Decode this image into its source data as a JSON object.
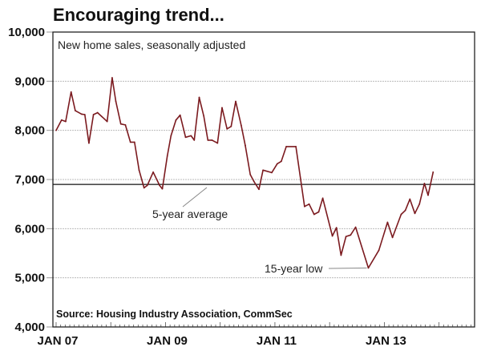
{
  "chart_data": {
    "type": "line",
    "title": "Encouraging trend...",
    "subtitle": "New home sales, seasonally adjusted",
    "source": "Source: Housing Industry Association, CommSec",
    "x_unit": "months since Jan 2007",
    "xlim": [
      -0.7,
      91.8
    ],
    "ylim": [
      4000,
      10000
    ],
    "yticks": [
      4000,
      5000,
      6000,
      7000,
      8000,
      9000,
      10000
    ],
    "ytick_labels": [
      "4,000",
      "5,000",
      "6,000",
      "7,000",
      "8,000",
      "9,000",
      "10,000"
    ],
    "xticks": [
      0,
      24,
      48,
      72
    ],
    "xtick_labels": [
      "JAN 07",
      "JAN 09",
      "JAN 11",
      "JAN 13"
    ],
    "grid": true,
    "colors": {
      "series": "#7b1a1f",
      "average": "#111111",
      "grid": "#bbbbbb"
    },
    "average": {
      "value": 6900,
      "label": "5-year average"
    },
    "low_annotation": {
      "x": 68.5,
      "value": 5200,
      "label": "15-year low"
    },
    "series": [
      {
        "name": "New home sales",
        "x": [
          0,
          1.2,
          2.1,
          3.3,
          4.2,
          5.6,
          6.3,
          7.2,
          8.2,
          9.1,
          11.2,
          12.3,
          13.1,
          14.2,
          15.2,
          16.3,
          17.2,
          18.2,
          19.3,
          20,
          21.3,
          22.7,
          23.3,
          24.4,
          25.2,
          26.3,
          27.2,
          28.4,
          29.6,
          30.3,
          31.4,
          32.4,
          33.3,
          34.2,
          35.4,
          36.4,
          37.5,
          38.4,
          39.4,
          40.6,
          41.5,
          42.6,
          43.4,
          44.5,
          45.4,
          47.3,
          48.5,
          49.4,
          50.5,
          52.6,
          54.5,
          55.5,
          56.6,
          57.6,
          58.5,
          60.6,
          61.5,
          62.5,
          63.6,
          64.6,
          65.7,
          68.5,
          70.8,
          72.7,
          73.8,
          75.7,
          76.6,
          77.6,
          78.7,
          79.7,
          80.8,
          81.6,
          82.7
        ],
        "values": [
          8000,
          8210,
          8180,
          8780,
          8400,
          8330,
          8320,
          7740,
          8320,
          8360,
          8180,
          9070,
          8590,
          8130,
          8110,
          7760,
          7760,
          7190,
          6830,
          6880,
          7150,
          6880,
          6810,
          7480,
          7890,
          8210,
          8310,
          7860,
          7890,
          7800,
          8670,
          8290,
          7800,
          7800,
          7740,
          8460,
          8030,
          8080,
          8590,
          8100,
          7690,
          7100,
          6960,
          6800,
          7190,
          7140,
          7320,
          7370,
          7670,
          7670,
          6450,
          6500,
          6290,
          6340,
          6620,
          5850,
          6020,
          5460,
          5840,
          5870,
          6030,
          5200,
          5560,
          6130,
          5820,
          6290,
          6370,
          6600,
          6310,
          6500,
          6920,
          6680,
          7150
        ]
      }
    ]
  }
}
